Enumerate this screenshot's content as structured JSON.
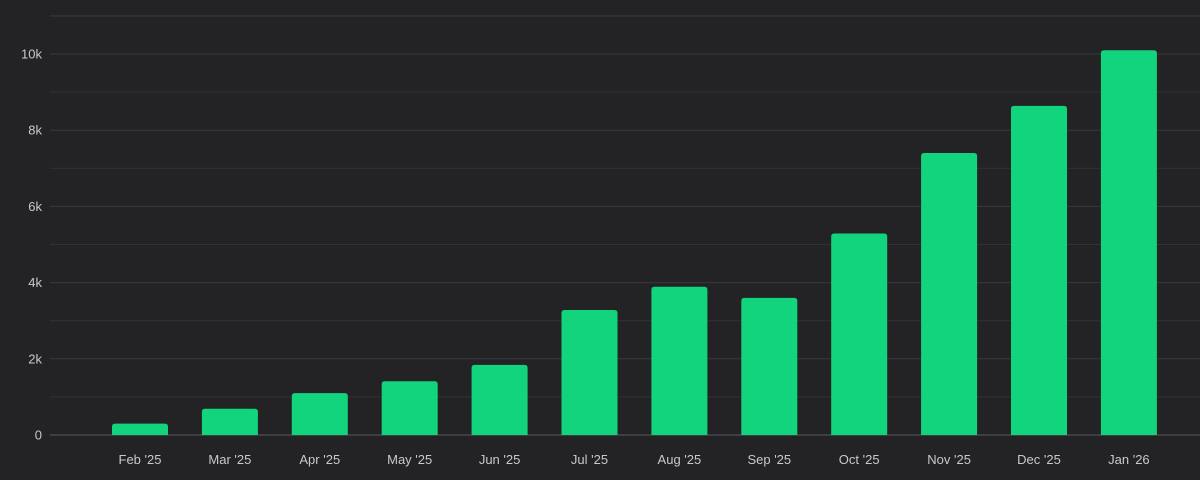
{
  "colors": {
    "background": "#232325",
    "bar": "#12d47c",
    "grid": "#3a3a3e",
    "tick_text": "#c9c9cc"
  },
  "chart_data": {
    "type": "bar",
    "title": "",
    "xlabel": "",
    "ylabel": "",
    "categories": [
      "Feb '25",
      "Mar '25",
      "Apr '25",
      "May '25",
      "Jun '25",
      "Jul '25",
      "Aug '25",
      "Sep '25",
      "Oct '25",
      "Nov '25",
      "Dec '25",
      "Jan '26"
    ],
    "values": [
      300,
      690,
      1100,
      1410,
      1840,
      3280,
      3890,
      3600,
      5290,
      7400,
      8640,
      10100
    ],
    "ylim": [
      0,
      10000
    ],
    "yticks": [
      0,
      2000,
      4000,
      6000,
      8000,
      10000
    ],
    "ytick_labels": [
      "0",
      "2k",
      "4k",
      "6k",
      "8k",
      "10k"
    ],
    "grid": true,
    "legend": "none"
  }
}
